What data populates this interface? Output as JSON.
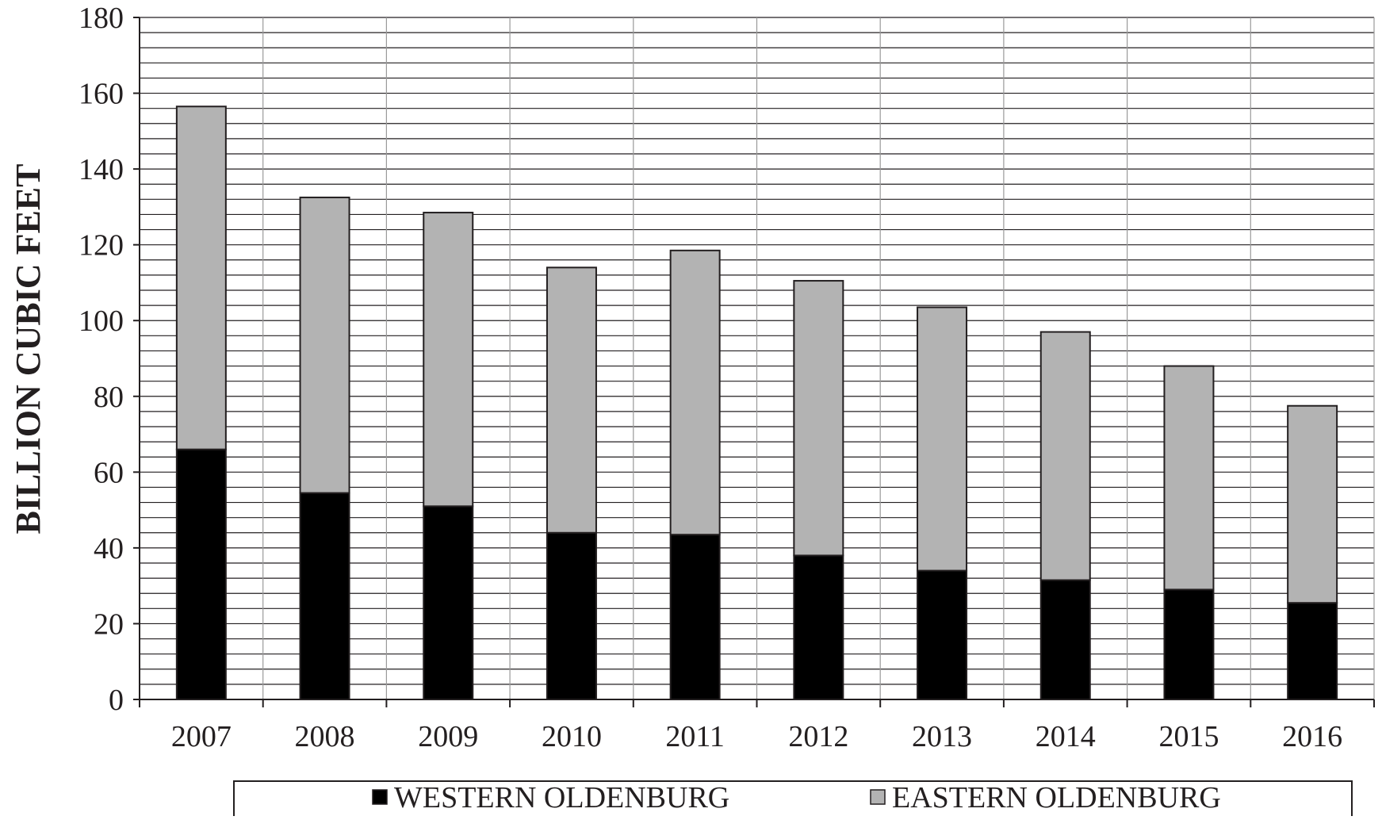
{
  "chart_data": {
    "type": "bar",
    "stacked": true,
    "title": "",
    "xlabel": "",
    "ylabel": "BILLION CUBIC FEET",
    "categories": [
      "2007",
      "2008",
      "2009",
      "2010",
      "2011",
      "2012",
      "2013",
      "2014",
      "2015",
      "2016"
    ],
    "series": [
      {
        "name": "WESTERN OLDENBURG",
        "color": "#000000",
        "values": [
          66,
          54.5,
          51,
          44,
          43.5,
          38,
          34,
          31.5,
          29,
          25.5
        ]
      },
      {
        "name": "EASTERN OLDENBURG",
        "color": "#b3b3b3",
        "values": [
          90.5,
          78,
          77.5,
          70,
          75,
          72.5,
          69.5,
          65.5,
          59,
          52
        ]
      }
    ],
    "ylim": [
      0,
      180
    ],
    "yticks": [
      "0",
      "20",
      "40",
      "60",
      "80",
      "100",
      "120",
      "140",
      "160",
      "180"
    ],
    "minor_grid_step": 4,
    "grid": true,
    "legend_position": "bottom"
  }
}
